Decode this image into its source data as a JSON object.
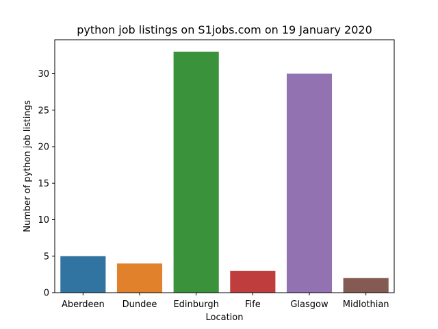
{
  "chart_data": {
    "type": "bar",
    "title": "python job listings on S1jobs.com on 19 January 2020",
    "xlabel": "Location",
    "ylabel": "Number of python job listings",
    "categories": [
      "Aberdeen",
      "Dundee",
      "Edinburgh",
      "Fife",
      "Glasgow",
      "Midlothian"
    ],
    "values": [
      5,
      4,
      33,
      3,
      30,
      2
    ],
    "colors": [
      "#3274a1",
      "#e1812c",
      "#3a923a",
      "#c03d3e",
      "#9372b2",
      "#845b53"
    ],
    "ylim": [
      0,
      34.65
    ],
    "yticks": [
      0,
      5,
      10,
      15,
      20,
      25,
      30
    ],
    "grid": false,
    "legend": "none"
  }
}
